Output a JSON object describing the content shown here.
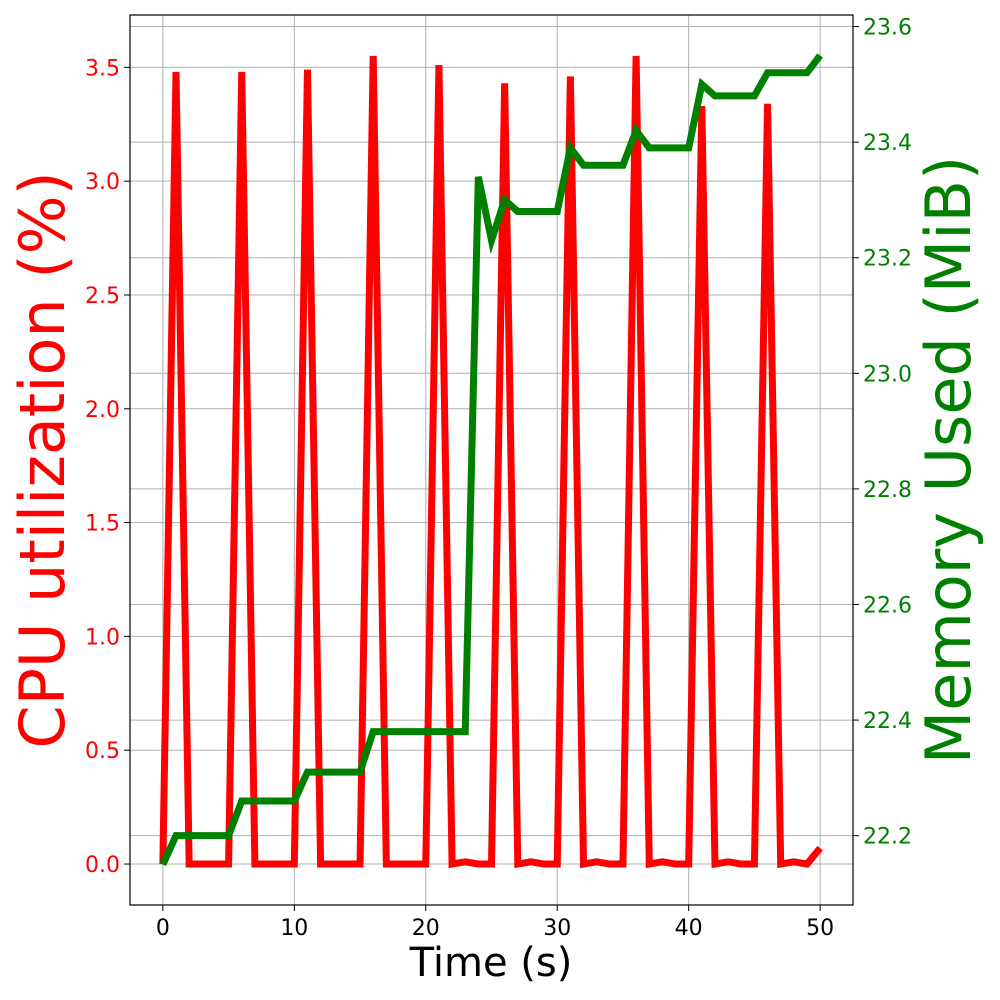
{
  "chart_data": {
    "type": "line",
    "xlabel": "Time (s)",
    "ylabel_left": "CPU utilization (%)",
    "ylabel_right": "Memory Used (MiB)",
    "grid": true,
    "xlim": [
      -2.5,
      52.5
    ],
    "ylim_left": [
      -0.18,
      3.73
    ],
    "ylim_right": [
      22.08,
      23.62
    ],
    "x_ticks": [
      0,
      10,
      20,
      30,
      40,
      50
    ],
    "left_ticks": [
      "0.0",
      "0.5",
      "1.0",
      "1.5",
      "2.0",
      "2.5",
      "3.0",
      "3.5"
    ],
    "right_ticks": [
      "22.2",
      "22.4",
      "22.6",
      "22.8",
      "23.0",
      "23.2",
      "23.4",
      "23.6"
    ],
    "colors": {
      "cpu": "#ff0000",
      "memory": "#008000"
    },
    "series": [
      {
        "axis": "left",
        "color": "#ff0000",
        "x": [
          0,
          1,
          2,
          3,
          4,
          5,
          6,
          7,
          8,
          9,
          10,
          11,
          12,
          13,
          14,
          15,
          16,
          17,
          18,
          19,
          20,
          21,
          22,
          23,
          24,
          25,
          26,
          27,
          28,
          29,
          30,
          31,
          32,
          33,
          34,
          35,
          36,
          37,
          38,
          39,
          40,
          41,
          42,
          43,
          44,
          45,
          46,
          47,
          48,
          49,
          50
        ],
        "values": [
          0.0,
          3.48,
          0.0,
          0.0,
          0.0,
          0.0,
          3.48,
          0.0,
          0.0,
          0.0,
          0.0,
          3.49,
          0.0,
          0.0,
          0.0,
          0.0,
          3.55,
          0.0,
          0.0,
          0.0,
          0.0,
          3.51,
          0.0,
          0.01,
          0.0,
          0.0,
          3.43,
          0.0,
          0.01,
          0.0,
          0.0,
          3.46,
          0.0,
          0.01,
          0.0,
          0.0,
          3.55,
          0.0,
          0.01,
          0.0,
          0.0,
          3.33,
          0.0,
          0.01,
          0.0,
          0.0,
          3.34,
          0.0,
          0.01,
          0.0,
          0.07
        ]
      },
      {
        "axis": "right",
        "color": "#008000",
        "x": [
          0,
          1,
          2,
          3,
          4,
          5,
          6,
          7,
          8,
          9,
          10,
          11,
          12,
          13,
          14,
          15,
          16,
          17,
          18,
          19,
          20,
          21,
          22,
          23,
          24,
          25,
          26,
          27,
          28,
          29,
          30,
          31,
          32,
          33,
          34,
          35,
          36,
          37,
          38,
          39,
          40,
          41,
          42,
          43,
          44,
          45,
          46,
          47,
          48,
          49,
          50
        ],
        "values": [
          22.15,
          22.2,
          22.2,
          22.2,
          22.2,
          22.2,
          22.26,
          22.26,
          22.26,
          22.26,
          22.26,
          22.31,
          22.31,
          22.31,
          22.31,
          22.31,
          22.38,
          22.38,
          22.38,
          22.38,
          22.38,
          22.38,
          22.38,
          22.38,
          23.34,
          23.23,
          23.3,
          23.28,
          23.28,
          23.28,
          23.28,
          23.39,
          23.36,
          23.36,
          23.36,
          23.36,
          23.42,
          23.39,
          23.39,
          23.39,
          23.39,
          23.5,
          23.48,
          23.48,
          23.48,
          23.48,
          23.52,
          23.52,
          23.52,
          23.52,
          23.55
        ]
      }
    ]
  }
}
